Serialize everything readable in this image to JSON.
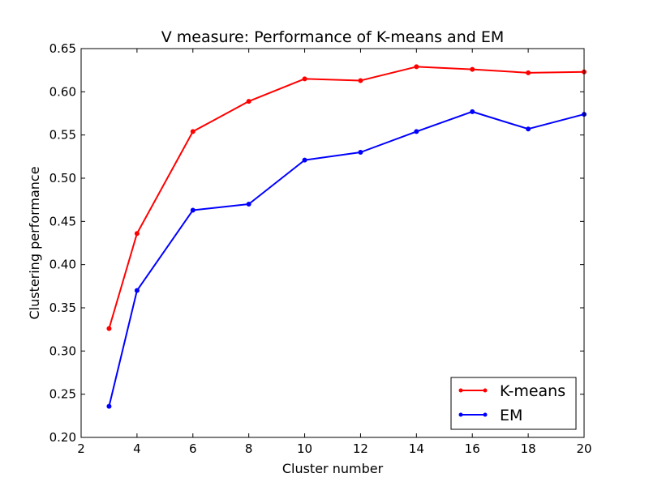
{
  "chart_data": {
    "type": "line",
    "title": "V measure: Performance of K-means and EM",
    "xlabel": "Cluster number",
    "ylabel": "Clustering performance",
    "xlim": [
      2,
      20
    ],
    "ylim": [
      0.2,
      0.65
    ],
    "x_ticks": [
      2,
      4,
      6,
      8,
      10,
      12,
      14,
      16,
      18,
      20
    ],
    "y_ticks": [
      0.2,
      0.25,
      0.3,
      0.35,
      0.4,
      0.45,
      0.5,
      0.55,
      0.6,
      0.65
    ],
    "x_tick_labels": [
      "2",
      "4",
      "6",
      "8",
      "10",
      "12",
      "14",
      "16",
      "18",
      "20"
    ],
    "y_tick_labels": [
      "0.20",
      "0.25",
      "0.30",
      "0.35",
      "0.40",
      "0.45",
      "0.50",
      "0.55",
      "0.60",
      "0.65"
    ],
    "x": [
      3,
      4,
      6,
      8,
      10,
      12,
      14,
      16,
      18,
      20
    ],
    "series": [
      {
        "name": "K-means",
        "color": "#ff0000",
        "values": [
          0.326,
          0.436,
          0.554,
          0.589,
          0.615,
          0.613,
          0.629,
          0.626,
          0.622,
          0.623
        ]
      },
      {
        "name": "EM",
        "color": "#0000ff",
        "values": [
          0.236,
          0.37,
          0.463,
          0.47,
          0.521,
          0.53,
          0.554,
          0.577,
          0.557,
          0.574
        ]
      }
    ],
    "grid": false,
    "legend": "lower-right"
  }
}
